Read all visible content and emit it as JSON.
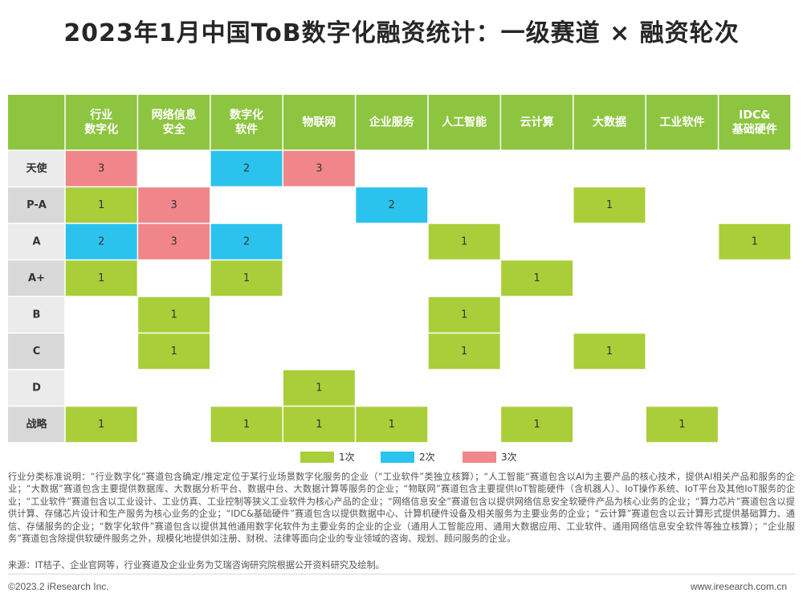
{
  "title": "2023年1月中国ToB数字化融资统计：一级赛道 × 融资轮次",
  "colors": {
    "header_bg": "#8DC540",
    "row_label_bg": "#EBEBEB",
    "row_label_alt_bg": "#D8D8D8",
    "round1": "#A9CE3A",
    "round2": "#2BC3ED",
    "round3": "#F0868A",
    "grid_line": "#FFFFFF"
  },
  "chart_data": {
    "type": "heatmap",
    "columns": [
      [
        "行业",
        "数字化"
      ],
      [
        "网络信息",
        "安全"
      ],
      [
        "数字化",
        "软件"
      ],
      [
        "物联网"
      ],
      [
        "企业服务"
      ],
      [
        "人工智能"
      ],
      [
        "云计算"
      ],
      [
        "大数据"
      ],
      [
        "工业软件"
      ],
      [
        "IDC&",
        "基础硬件"
      ]
    ],
    "rows": [
      "天使",
      "P-A",
      "A",
      "A+",
      "B",
      "C",
      "D",
      "战略"
    ],
    "values": [
      [
        3,
        null,
        2,
        3,
        null,
        null,
        null,
        null,
        null,
        null
      ],
      [
        1,
        3,
        null,
        null,
        2,
        null,
        null,
        1,
        null,
        null
      ],
      [
        2,
        3,
        2,
        null,
        null,
        1,
        null,
        null,
        null,
        1
      ],
      [
        1,
        null,
        1,
        null,
        null,
        null,
        1,
        null,
        null,
        null
      ],
      [
        null,
        1,
        null,
        null,
        null,
        1,
        null,
        null,
        null,
        null
      ],
      [
        null,
        1,
        null,
        null,
        null,
        1,
        null,
        1,
        null,
        null
      ],
      [
        null,
        null,
        null,
        1,
        null,
        null,
        null,
        null,
        null,
        null
      ],
      [
        1,
        null,
        1,
        1,
        1,
        null,
        1,
        null,
        1,
        null
      ]
    ],
    "legend": [
      {
        "label": "1次",
        "value": 1
      },
      {
        "label": "2次",
        "value": 2
      },
      {
        "label": "3次",
        "value": 3
      }
    ]
  },
  "note": "行业分类标准说明：“行业数字化”赛道包含确定/推定定位于某行业场景数字化服务的企业（“工业软件”类独立核算）；“人工智能”赛道包含以AI为主要产品的核心技术，提供AI相关产品和服务的企业；“大数据”赛道包含主要提供数据库、大数据分析平台、数据中台、大数据计算等服务的企业；“物联网”赛道包含主要提供IoT智能硬件（含机器人）、IoT操作系统、IoT平台及其他IoT服务的企业；“工业软件”赛道包含以工业设计、工业仿真、工业控制等狭义工业软件为核心产品的企业；“网络信息安全”赛道包含以提供网络信息安全软硬件产品为核心业务的企业；“算力芯片”赛道包含以提供计算、存储芯片设计和生产服务为核心业务的企业；“IDC&基础硬件”赛道包含以提供数据中心、计算机硬件设备及相关服务为主要业务的企业；“云计算”赛道包含以云计算形式提供基础算力、通信、存储服务的企业；“数字化软件”赛道包含以提供其他通用数字化软件为主要业务的企业的企业（通用人工智能应用、通用大数据应用、工业软件、通用网络信息安全软件等独立核算）；“企业服务”赛道包含除提供软硬件服务之外，规模化地提供如注册、财税、法律等面向企业的专业领域的咨询、规划、顾问服务的企业。",
  "source": "来源：IT桔子、企业官网等，行业赛道及企业业务为艾瑞咨询研究院根据公开资料研究及绘制。",
  "footer": {
    "copyright": "©2023.2 iResearch Inc.",
    "website": "www.iresearch.com.cn"
  }
}
